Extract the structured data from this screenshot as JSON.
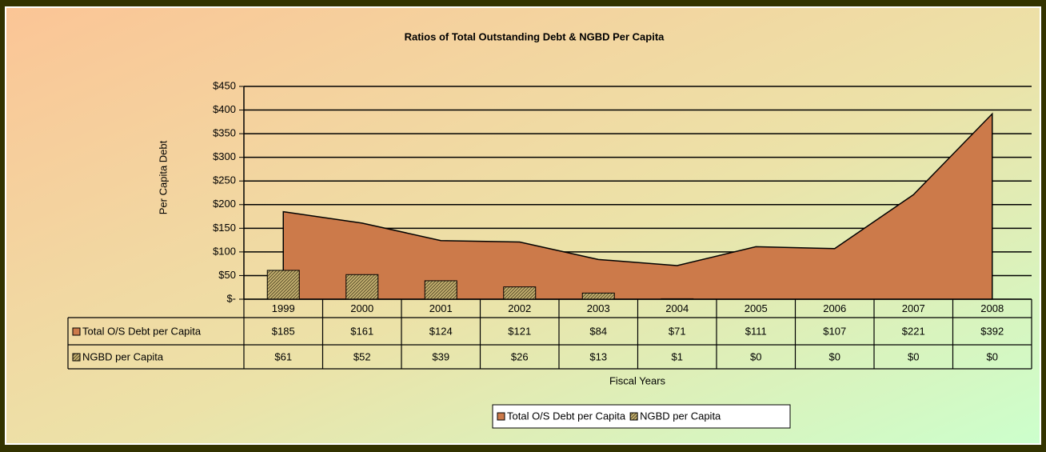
{
  "chart_data": {
    "type": "combo",
    "title": "Ratios of Total Outstanding Debt & NGBD Per Capita",
    "y_label": "Per Capita Debt",
    "x_label": "Fiscal Years",
    "categories": [
      "1999",
      "2000",
      "2001",
      "2002",
      "2003",
      "2004",
      "2005",
      "2006",
      "2007",
      "2008"
    ],
    "series": [
      {
        "name": "Total O/S Debt per Capita",
        "type": "area",
        "color": "#cc7a4a",
        "values": [
          185,
          161,
          124,
          121,
          84,
          71,
          111,
          107,
          221,
          392
        ],
        "value_labels": [
          "$185",
          "$161",
          "$124",
          "$121",
          "$84",
          "$71",
          "$111",
          "$107",
          "$221",
          "$392"
        ]
      },
      {
        "name": "NGBD per Capita",
        "type": "bar",
        "color": "#c4b070",
        "values": [
          61,
          52,
          39,
          26,
          13,
          1,
          0,
          0,
          0,
          0
        ],
        "value_labels": [
          "$61",
          "$52",
          "$39",
          "$26",
          "$13",
          "$1",
          "$0",
          "$0",
          "$0",
          "$0"
        ]
      }
    ],
    "ylim": [
      0,
      450
    ],
    "yticks": [
      {
        "value": 0,
        "label": "$-"
      },
      {
        "value": 50,
        "label": "$50"
      },
      {
        "value": 100,
        "label": "$100"
      },
      {
        "value": 150,
        "label": "$150"
      },
      {
        "value": 200,
        "label": "$200"
      },
      {
        "value": 250,
        "label": "$250"
      },
      {
        "value": 300,
        "label": "$300"
      },
      {
        "value": 350,
        "label": "$350"
      },
      {
        "value": 400,
        "label": "$400"
      },
      {
        "value": 450,
        "label": "$450"
      }
    ],
    "grid": true,
    "legend": "bottom"
  }
}
